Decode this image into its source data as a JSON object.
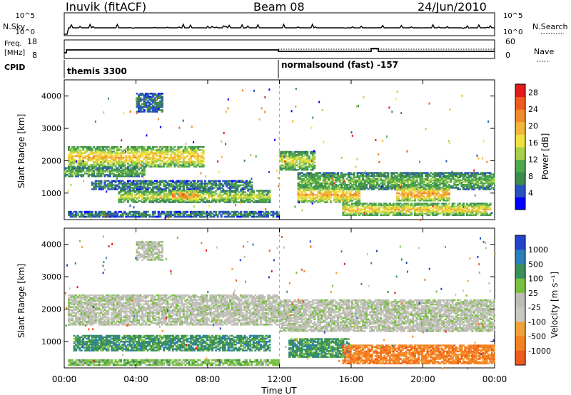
{
  "header": {
    "station": "Inuvik (fitACF)",
    "beam": "Beam 08",
    "date": "24/Jun/2010"
  },
  "strip": {
    "nsky_label": "N.Sky",
    "nsky_ticks": [
      "10^5",
      "10^0"
    ],
    "nsearch_label": "N.Search",
    "freq_label_line1": "Freq.",
    "freq_label_line2": "[MHz]",
    "freq_ticks": [
      "18",
      "8"
    ],
    "nave_label": "Nave",
    "nave_ticks": [
      "60",
      "0"
    ],
    "cpid_label": "CPID",
    "cpid_segments": [
      {
        "name": "themis 3300",
        "start_hour": 0
      },
      {
        "name": "normalsound (fast) -157",
        "start_hour": 12
      }
    ]
  },
  "colors": {
    "power_scale": [
      "#0000ff",
      "#2a52be",
      "#3c8a4e",
      "#4fa84e",
      "#a8d04a",
      "#f0e040",
      "#f3b53a",
      "#f08a2a",
      "#ef5a1f",
      "#e31a1c"
    ],
    "velocity_scale": [
      "#2244cc",
      "#2c7fb8",
      "#3a8f5a",
      "#78c040",
      "#bdbdb5",
      "#c8c8c0",
      "#f2a03a",
      "#f58220",
      "#ef5a1f",
      "#e31a1c"
    ],
    "ground_scatter": "#bdbdb5"
  },
  "chart_data": [
    {
      "type": "heatmap",
      "panel": "power",
      "xlabel": "Time UT",
      "ylabel": "Slant Range [km]",
      "x_ticks": [
        "00:00",
        "04:00",
        "08:00",
        "12:00",
        "16:00",
        "20:00",
        "00:00"
      ],
      "xlim_hours": [
        0,
        24
      ],
      "y_ticks": [
        1000,
        2000,
        3000,
        4000
      ],
      "ylim_km": [
        180,
        4500
      ],
      "colorbar": {
        "label": "Power [dB]",
        "ticks": [
          4,
          8,
          12,
          16,
          20,
          24,
          28
        ],
        "range": [
          0,
          30
        ]
      },
      "bands": [
        {
          "t0": 0.2,
          "t1": 7.8,
          "r0": 1800,
          "r1": 2450,
          "level": 20
        },
        {
          "t0": 0.0,
          "t1": 4.5,
          "r0": 1500,
          "r1": 1800,
          "level": 12
        },
        {
          "t0": 1.5,
          "t1": 10.5,
          "r0": 1100,
          "r1": 1400,
          "level": 8
        },
        {
          "t0": 3.0,
          "t1": 11.5,
          "r0": 700,
          "r1": 1100,
          "level": 16
        },
        {
          "t0": 6.0,
          "t1": 7.5,
          "r0": 750,
          "r1": 1100,
          "level": 26
        },
        {
          "t0": 0.2,
          "t1": 12.0,
          "r0": 250,
          "r1": 450,
          "level": 8
        },
        {
          "t0": 12.0,
          "t1": 14.0,
          "r0": 1700,
          "r1": 2300,
          "level": 16
        },
        {
          "t0": 13.0,
          "t1": 24.0,
          "r0": 1100,
          "r1": 1650,
          "level": 12
        },
        {
          "t0": 13.0,
          "t1": 16.5,
          "r0": 700,
          "r1": 1200,
          "level": 22
        },
        {
          "t0": 15.5,
          "t1": 23.8,
          "r0": 300,
          "r1": 700,
          "level": 20
        },
        {
          "t0": 18.5,
          "t1": 21.5,
          "r0": 750,
          "r1": 1200,
          "level": 24
        },
        {
          "t0": 4.0,
          "t1": 5.5,
          "r0": 3500,
          "r1": 4100,
          "level": 6
        }
      ]
    },
    {
      "type": "heatmap",
      "panel": "velocity",
      "xlabel": "Time UT",
      "ylabel": "Slant Range [km]",
      "x_ticks": [
        "00:00",
        "04:00",
        "08:00",
        "12:00",
        "16:00",
        "20:00",
        "00:00"
      ],
      "xlim_hours": [
        0,
        24
      ],
      "y_ticks": [
        1000,
        2000,
        3000,
        4000
      ],
      "ylim_km": [
        180,
        4500
      ],
      "colorbar": {
        "label": "Velocity [m s⁻¹]",
        "ticks": [
          1000,
          500,
          100,
          25,
          -25,
          -100,
          -500,
          -1000
        ]
      },
      "bands": [
        {
          "t0": 0.2,
          "t1": 12.0,
          "r0": 1500,
          "r1": 2450,
          "level": 4
        },
        {
          "t0": 12.0,
          "t1": 24.0,
          "r0": 1300,
          "r1": 2300,
          "level": 4
        },
        {
          "t0": 0.5,
          "t1": 11.5,
          "r0": 700,
          "r1": 1200,
          "level": 2
        },
        {
          "t0": 12.5,
          "t1": 16.0,
          "r0": 500,
          "r1": 1100,
          "level": 2
        },
        {
          "t0": 15.5,
          "t1": 24.0,
          "r0": 300,
          "r1": 900,
          "level": 7
        },
        {
          "t0": 0.2,
          "t1": 12.0,
          "r0": 250,
          "r1": 450,
          "level": 3
        },
        {
          "t0": 4.0,
          "t1": 5.5,
          "r0": 3500,
          "r1": 4100,
          "level": 4
        }
      ]
    }
  ]
}
